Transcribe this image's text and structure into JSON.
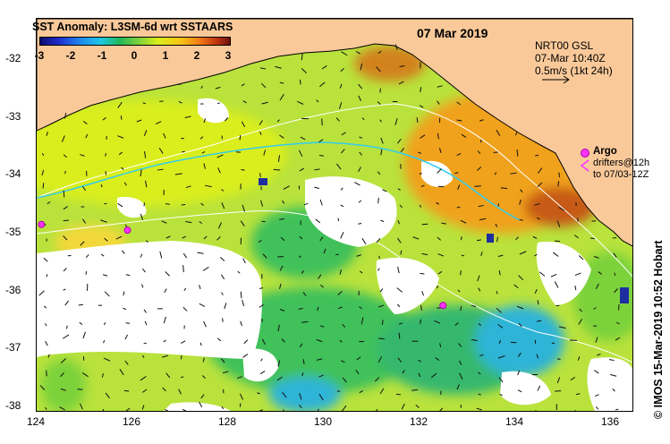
{
  "title": "SST Anomaly: L3SM-6d wrt SSTAARS",
  "date": "07 Mar 2019",
  "info": {
    "line1": "NRT00 GSL",
    "line2": "07-Mar 10:40Z",
    "line3": "0.5m/s (1kt 24h)"
  },
  "colorbar": {
    "ticks": [
      "-3",
      "-2",
      "-1",
      "0",
      "1",
      "2",
      "3"
    ]
  },
  "legend": {
    "argo": "Argo",
    "drifters_line1": "drifters@12h",
    "drifters_line2": "to 07/03-12Z"
  },
  "credit": "© IMOS 15-Mar-2019 10:52 Hobart",
  "axes": {
    "lat_ticks": [
      "-32",
      "-33",
      "-34",
      "-35",
      "-36",
      "-37",
      "-38"
    ],
    "lon_ticks": [
      "124",
      "126",
      "128",
      "130",
      "132",
      "134",
      "136"
    ]
  },
  "colors": {
    "land": "#f9c99a",
    "ocean_base": "#b9e23c",
    "warm": "#f0a21c",
    "hot": "#c65a12",
    "cool": "#3fc15a",
    "cold": "#2fb4d6",
    "argo": "#ff33ff",
    "contour": "#ffffff",
    "current_line": "#33ccee"
  },
  "argo_floats": [
    {
      "lon": 125.9,
      "lat": -35.2
    },
    {
      "lon": 132.5,
      "lat": -36.5
    },
    {
      "lon": 124.1,
      "lat": -35.1
    }
  ]
}
